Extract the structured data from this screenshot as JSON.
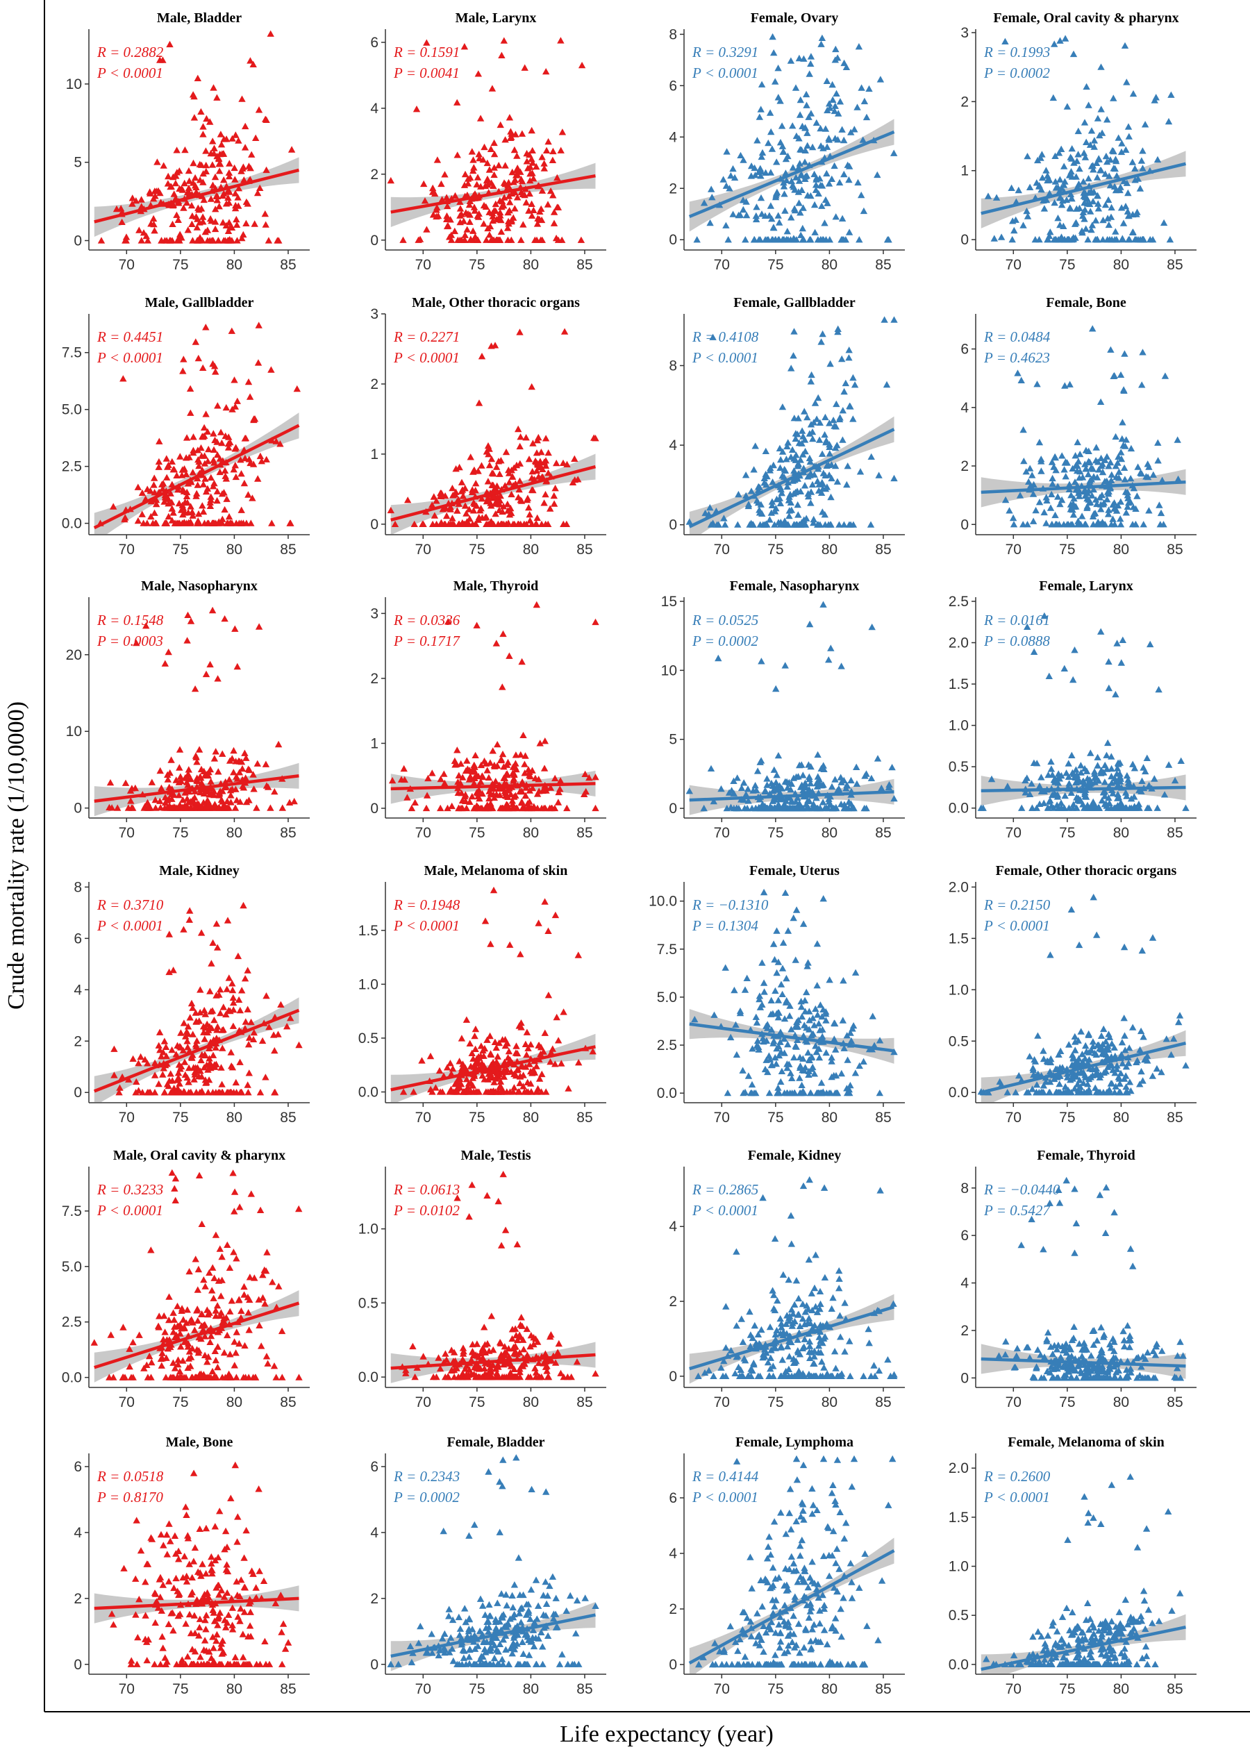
{
  "figure": {
    "xlabel": "Life expectancy (year)",
    "ylabel": "Crude mortality rate (1/10,0000)",
    "colors": {
      "male": "#e41a1c",
      "female": "#377eb8",
      "ci_band": "#bfbfbf",
      "axis": "#333333"
    }
  },
  "chart_data": [
    {
      "type": "scatter",
      "title": "Male, Bladder",
      "series": "male",
      "xlim": [
        66.5,
        87
      ],
      "ylim": [
        -0.6,
        13.5
      ],
      "xticks": [
        70,
        75,
        80,
        85
      ],
      "yticks": [
        0,
        5,
        10
      ],
      "ytick_labels": [
        "0",
        "5",
        "10"
      ],
      "fit": {
        "x": [
          67,
          86
        ],
        "y": [
          1.2,
          4.5
        ]
      },
      "R": "R = 0.2882",
      "P": "P < 0.0001",
      "n_points": 260,
      "y_cap": 13.2
    },
    {
      "type": "scatter",
      "title": "Male, Larynx",
      "series": "male",
      "xlim": [
        66.5,
        87
      ],
      "ylim": [
        -0.3,
        6.4
      ],
      "xticks": [
        70,
        75,
        80,
        85
      ],
      "yticks": [
        0,
        2,
        4,
        6
      ],
      "ytick_labels": [
        "0",
        "2",
        "4",
        "6"
      ],
      "fit": {
        "x": [
          67,
          86
        ],
        "y": [
          0.85,
          1.95
        ]
      },
      "R": "R = 0.1591",
      "P": "P = 0.0041",
      "n_points": 260,
      "y_cap": 6.2
    },
    {
      "type": "scatter",
      "title": "Female, Ovary",
      "series": "female",
      "xlim": [
        66.5,
        87
      ],
      "ylim": [
        -0.4,
        8.2
      ],
      "xticks": [
        70,
        75,
        80,
        85
      ],
      "yticks": [
        0,
        2,
        4,
        6,
        8
      ],
      "ytick_labels": [
        "0",
        "2",
        "4",
        "6",
        "8"
      ],
      "fit": {
        "x": [
          67,
          86
        ],
        "y": [
          0.9,
          4.2
        ]
      },
      "R": "R = 0.3291",
      "P": "P < 0.0001",
      "n_points": 260,
      "y_cap": 7.9
    },
    {
      "type": "scatter",
      "title": "Female, Oral cavity & pharynx",
      "series": "female",
      "xlim": [
        66.5,
        87
      ],
      "ylim": [
        -0.15,
        3.05
      ],
      "xticks": [
        70,
        75,
        80,
        85
      ],
      "yticks": [
        0,
        1,
        2,
        3
      ],
      "ytick_labels": [
        "0",
        "1",
        "2",
        "3"
      ],
      "fit": {
        "x": [
          67,
          86
        ],
        "y": [
          0.38,
          1.1
        ]
      },
      "R": "R = 0.1993",
      "P": "P = 0.0002",
      "n_points": 260,
      "y_cap": 2.95
    },
    {
      "type": "scatter",
      "title": "Male, Gallbladder",
      "series": "male",
      "xlim": [
        66.5,
        87
      ],
      "ylim": [
        -0.5,
        9.2
      ],
      "xticks": [
        70,
        75,
        80,
        85
      ],
      "yticks": [
        0,
        2.5,
        5,
        7.5
      ],
      "ytick_labels": [
        "0.0",
        "2.5",
        "5.0",
        "7.5"
      ],
      "fit": {
        "x": [
          67,
          86
        ],
        "y": [
          -0.2,
          4.3
        ]
      },
      "R": "R = 0.4451",
      "P": "P < 0.0001",
      "n_points": 260,
      "y_cap": 9.0
    },
    {
      "type": "scatter",
      "title": "Male, Other thoracic organs",
      "series": "male",
      "xlim": [
        66.5,
        87
      ],
      "ylim": [
        -0.15,
        3.0
      ],
      "xticks": [
        70,
        75,
        80,
        85
      ],
      "yticks": [
        0,
        1,
        2,
        3
      ],
      "ytick_labels": [
        "0",
        "1",
        "2",
        "3"
      ],
      "fit": {
        "x": [
          67,
          86
        ],
        "y": [
          0.06,
          0.82
        ]
      },
      "R": "R = 0.2271",
      "P": "P < 0.0001",
      "n_points": 260,
      "y_cap": 2.9
    },
    {
      "type": "scatter",
      "title": "Female, Gallbladder",
      "series": "female",
      "xlim": [
        66.5,
        87
      ],
      "ylim": [
        -0.5,
        10.6
      ],
      "xticks": [
        70,
        75,
        80,
        85
      ],
      "yticks": [
        0,
        4,
        8
      ],
      "ytick_labels": [
        "0",
        "4",
        "8"
      ],
      "fit": {
        "x": [
          67,
          86
        ],
        "y": [
          -0.1,
          4.8
        ]
      },
      "R": "R = 0.4108",
      "P": "P < 0.0001",
      "n_points": 260,
      "y_cap": 10.3
    },
    {
      "type": "scatter",
      "title": "Female, Bone",
      "series": "female",
      "xlim": [
        66.5,
        87
      ],
      "ylim": [
        -0.35,
        7.2
      ],
      "xticks": [
        70,
        75,
        80,
        85
      ],
      "yticks": [
        0,
        2,
        4,
        6
      ],
      "ytick_labels": [
        "0",
        "2",
        "4",
        "6"
      ],
      "fit": {
        "x": [
          67,
          86
        ],
        "y": [
          1.1,
          1.45
        ]
      },
      "R": "R = 0.0484",
      "P": "P = 0.4623",
      "n_points": 260,
      "y_cap": 7.0
    },
    {
      "type": "scatter",
      "title": "Male, Nasopharynx",
      "series": "male",
      "xlim": [
        66.5,
        87
      ],
      "ylim": [
        -1.3,
        27.5
      ],
      "xticks": [
        70,
        75,
        80,
        85
      ],
      "yticks": [
        0,
        10,
        20
      ],
      "ytick_labels": [
        "0",
        "10",
        "20"
      ],
      "fit": {
        "x": [
          67,
          86
        ],
        "y": [
          0.9,
          4.2
        ]
      },
      "R": "R = 0.1548",
      "P": "P = 0.0003",
      "n_points": 260,
      "y_cap": 27
    },
    {
      "type": "scatter",
      "title": "Male, Thyroid",
      "series": "male",
      "xlim": [
        66.5,
        87
      ],
      "ylim": [
        -0.15,
        3.25
      ],
      "xticks": [
        70,
        75,
        80,
        85
      ],
      "yticks": [
        0,
        1,
        2,
        3
      ],
      "ytick_labels": [
        "0",
        "1",
        "2",
        "3"
      ],
      "fit": {
        "x": [
          67,
          86
        ],
        "y": [
          0.3,
          0.38
        ]
      },
      "R": "R = 0.0336",
      "P": "P = 0.1717",
      "n_points": 260,
      "y_cap": 3.15
    },
    {
      "type": "scatter",
      "title": "Female, Nasopharynx",
      "series": "female",
      "xlim": [
        66.5,
        87
      ],
      "ylim": [
        -0.7,
        15.3
      ],
      "xticks": [
        70,
        75,
        80,
        85
      ],
      "yticks": [
        0,
        5,
        10,
        15
      ],
      "ytick_labels": [
        "0",
        "5",
        "10",
        "15"
      ],
      "fit": {
        "x": [
          67,
          86
        ],
        "y": [
          0.6,
          1.2
        ]
      },
      "R": "R = 0.0525",
      "P": "P = 0.0002",
      "n_points": 260,
      "y_cap": 14.8
    },
    {
      "type": "scatter",
      "title": "Female, Larynx",
      "series": "female",
      "xlim": [
        66.5,
        87
      ],
      "ylim": [
        -0.12,
        2.55
      ],
      "xticks": [
        70,
        75,
        80,
        85
      ],
      "yticks": [
        0,
        0.5,
        1,
        1.5,
        2,
        2.5
      ],
      "ytick_labels": [
        "0.0",
        "0.5",
        "1.0",
        "1.5",
        "2.0",
        "2.5"
      ],
      "fit": {
        "x": [
          67,
          86
        ],
        "y": [
          0.21,
          0.25
        ]
      },
      "R": "R = 0.0161",
      "P": "P = 0.0888",
      "n_points": 260,
      "y_cap": 2.4
    },
    {
      "type": "scatter",
      "title": "Male, Kidney",
      "series": "male",
      "xlim": [
        66.5,
        87
      ],
      "ylim": [
        -0.4,
        8.2
      ],
      "xticks": [
        70,
        75,
        80,
        85
      ],
      "yticks": [
        0,
        2,
        4,
        6,
        8
      ],
      "ytick_labels": [
        "0",
        "2",
        "4",
        "6",
        "8"
      ],
      "fit": {
        "x": [
          67,
          86
        ],
        "y": [
          0.05,
          3.2
        ]
      },
      "R": "R = 0.3710",
      "P": "P < 0.0001",
      "n_points": 260,
      "y_cap": 7.9
    },
    {
      "type": "scatter",
      "title": "Male, Melanoma of skin",
      "series": "male",
      "xlim": [
        66.5,
        87
      ],
      "ylim": [
        -0.1,
        1.95
      ],
      "xticks": [
        70,
        75,
        80,
        85
      ],
      "yticks": [
        0,
        0.5,
        1,
        1.5
      ],
      "ytick_labels": [
        "0.0",
        "0.5",
        "1.0",
        "1.5"
      ],
      "fit": {
        "x": [
          67,
          86
        ],
        "y": [
          0.02,
          0.42
        ]
      },
      "R": "R = 0.1948",
      "P": "P < 0.0001",
      "n_points": 260,
      "y_cap": 1.88
    },
    {
      "type": "scatter",
      "title": "Female, Uterus",
      "series": "female",
      "xlim": [
        66.5,
        87
      ],
      "ylim": [
        -0.5,
        11.0
      ],
      "xticks": [
        70,
        75,
        80,
        85
      ],
      "yticks": [
        0,
        2.5,
        5,
        7.5,
        10
      ],
      "ytick_labels": [
        "0.0",
        "2.5",
        "5.0",
        "7.5",
        "10.0"
      ],
      "fit": {
        "x": [
          67,
          86
        ],
        "y": [
          3.6,
          2.2
        ]
      },
      "R": "R = −0.1310",
      "P": "P = 0.1304",
      "n_points": 260,
      "y_cap": 10.7
    },
    {
      "type": "scatter",
      "title": "Female, Other thoracic organs",
      "series": "female",
      "xlim": [
        66.5,
        87
      ],
      "ylim": [
        -0.1,
        2.05
      ],
      "xticks": [
        70,
        75,
        80,
        85
      ],
      "yticks": [
        0,
        0.5,
        1,
        1.5,
        2
      ],
      "ytick_labels": [
        "0.0",
        "0.5",
        "1.0",
        "1.5",
        "2.0"
      ],
      "fit": {
        "x": [
          67,
          86
        ],
        "y": [
          0.0,
          0.48
        ]
      },
      "R": "R = 0.2150",
      "P": "P < 0.0001",
      "n_points": 260,
      "y_cap": 1.93
    },
    {
      "type": "scatter",
      "title": "Male, Oral cavity & pharynx",
      "series": "male",
      "xlim": [
        66.5,
        87
      ],
      "ylim": [
        -0.45,
        9.5
      ],
      "xticks": [
        70,
        75,
        80,
        85
      ],
      "yticks": [
        0,
        2.5,
        5,
        7.5
      ],
      "ytick_labels": [
        "0.0",
        "2.5",
        "5.0",
        "7.5"
      ],
      "fit": {
        "x": [
          67,
          86
        ],
        "y": [
          0.45,
          3.35
        ]
      },
      "R": "R = 0.3233",
      "P": "P < 0.0001",
      "n_points": 260,
      "y_cap": 9.3
    },
    {
      "type": "scatter",
      "title": "Male, Testis",
      "series": "male",
      "xlim": [
        66.5,
        87
      ],
      "ylim": [
        -0.07,
        1.42
      ],
      "xticks": [
        70,
        75,
        80,
        85
      ],
      "yticks": [
        0,
        0.5,
        1
      ],
      "ytick_labels": [
        "0.0",
        "0.5",
        "1.0"
      ],
      "fit": {
        "x": [
          67,
          86
        ],
        "y": [
          0.06,
          0.15
        ]
      },
      "R": "R = 0.0613",
      "P": "P = 0.0102",
      "n_points": 260,
      "y_cap": 1.38
    },
    {
      "type": "scatter",
      "title": "Female, Kidney",
      "series": "female",
      "xlim": [
        66.5,
        87
      ],
      "ylim": [
        -0.3,
        5.6
      ],
      "xticks": [
        70,
        75,
        80,
        85
      ],
      "yticks": [
        0,
        2,
        4
      ],
      "ytick_labels": [
        "0",
        "2",
        "4"
      ],
      "fit": {
        "x": [
          67,
          86
        ],
        "y": [
          0.2,
          1.85
        ]
      },
      "R": "R = 0.2865",
      "P": "P < 0.0001",
      "n_points": 260,
      "y_cap": 5.4
    },
    {
      "type": "scatter",
      "title": "Female, Thyroid",
      "series": "female",
      "xlim": [
        66.5,
        87
      ],
      "ylim": [
        -0.4,
        8.9
      ],
      "xticks": [
        70,
        75,
        80,
        85
      ],
      "yticks": [
        0,
        2,
        4,
        6,
        8
      ],
      "ytick_labels": [
        "0",
        "2",
        "4",
        "6",
        "8"
      ],
      "fit": {
        "x": [
          67,
          86
        ],
        "y": [
          0.8,
          0.5
        ]
      },
      "R": "R = −0.0440",
      "P": "P = 0.5427",
      "n_points": 260,
      "y_cap": 8.6
    },
    {
      "type": "scatter",
      "title": "Male, Bone",
      "series": "male",
      "xlim": [
        66.5,
        87
      ],
      "ylim": [
        -0.3,
        6.4
      ],
      "xticks": [
        70,
        75,
        80,
        85
      ],
      "yticks": [
        0,
        2,
        4,
        6
      ],
      "ytick_labels": [
        "0",
        "2",
        "4",
        "6"
      ],
      "fit": {
        "x": [
          67,
          86
        ],
        "y": [
          1.7,
          2.0
        ]
      },
      "R": "R = 0.0518",
      "P": "P = 0.8170",
      "n_points": 260,
      "y_cap": 6.2
    },
    {
      "type": "scatter",
      "title": "Female, Bladder",
      "series": "female",
      "xlim": [
        66.5,
        87
      ],
      "ylim": [
        -0.3,
        6.4
      ],
      "xticks": [
        70,
        75,
        80,
        85
      ],
      "yticks": [
        0,
        2,
        4,
        6
      ],
      "ytick_labels": [
        "0",
        "2",
        "4",
        "6"
      ],
      "fit": {
        "x": [
          67,
          86
        ],
        "y": [
          0.25,
          1.5
        ]
      },
      "R": "R = 0.2343",
      "P": "P = 0.0002",
      "n_points": 260,
      "y_cap": 6.3
    },
    {
      "type": "scatter",
      "title": "Female, Lymphoma",
      "series": "female",
      "xlim": [
        66.5,
        87
      ],
      "ylim": [
        -0.35,
        7.6
      ],
      "xticks": [
        70,
        75,
        80,
        85
      ],
      "yticks": [
        0,
        2,
        4,
        6
      ],
      "ytick_labels": [
        "0",
        "2",
        "4",
        "6"
      ],
      "fit": {
        "x": [
          67,
          86
        ],
        "y": [
          0.05,
          4.1
        ]
      },
      "R": "R = 0.4144",
      "P": "P < 0.0001",
      "n_points": 260,
      "y_cap": 7.4
    },
    {
      "type": "scatter",
      "title": "Female, Melanoma of skin",
      "series": "female",
      "xlim": [
        66.5,
        87
      ],
      "ylim": [
        -0.1,
        2.15
      ],
      "xticks": [
        70,
        75,
        80,
        85
      ],
      "yticks": [
        0,
        0.5,
        1,
        1.5,
        2
      ],
      "ytick_labels": [
        "0.0",
        "0.5",
        "1.0",
        "1.5",
        "2.0"
      ],
      "fit": {
        "x": [
          67,
          86
        ],
        "y": [
          -0.05,
          0.38
        ]
      },
      "R": "R = 0.2600",
      "P": "P < 0.0001",
      "n_points": 260,
      "y_cap": 2.1
    }
  ]
}
